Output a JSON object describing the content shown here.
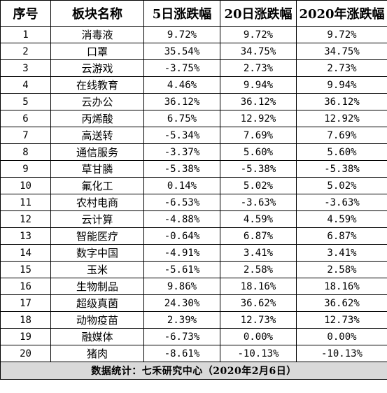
{
  "table": {
    "headers": [
      "序号",
      "板块名称",
      "5日涨跌幅",
      "20日涨跌幅",
      "2020年涨跌幅"
    ],
    "rows": [
      [
        "1",
        "消毒液",
        "9.72%",
        "9.72%",
        "9.72%"
      ],
      [
        "2",
        "口罩",
        "35.54%",
        "34.75%",
        "34.75%"
      ],
      [
        "3",
        "云游戏",
        "-3.75%",
        "2.73%",
        "2.73%"
      ],
      [
        "4",
        "在线教育",
        "4.46%",
        "9.94%",
        "9.94%"
      ],
      [
        "5",
        "云办公",
        "36.12%",
        "36.12%",
        "36.12%"
      ],
      [
        "6",
        "丙烯酸",
        "6.75%",
        "12.92%",
        "12.92%"
      ],
      [
        "7",
        "高送转",
        "-5.34%",
        "7.69%",
        "7.69%"
      ],
      [
        "8",
        "通信服务",
        "-3.37%",
        "5.60%",
        "5.60%"
      ],
      [
        "9",
        "草甘膦",
        "-5.38%",
        "-5.38%",
        "-5.38%"
      ],
      [
        "10",
        "氟化工",
        "0.14%",
        "5.02%",
        "5.02%"
      ],
      [
        "11",
        "农村电商",
        "-6.53%",
        "-3.63%",
        "-3.63%"
      ],
      [
        "12",
        "云计算",
        "-4.88%",
        "4.59%",
        "4.59%"
      ],
      [
        "13",
        "智能医疗",
        "-0.64%",
        "6.87%",
        "6.87%"
      ],
      [
        "14",
        "数字中国",
        "-4.91%",
        "3.41%",
        "3.41%"
      ],
      [
        "15",
        "玉米",
        "-5.61%",
        "2.58%",
        "2.58%"
      ],
      [
        "16",
        "生物制品",
        "9.86%",
        "18.16%",
        "18.16%"
      ],
      [
        "17",
        "超级真菌",
        "24.30%",
        "36.62%",
        "36.62%"
      ],
      [
        "18",
        "动物疫苗",
        "2.39%",
        "12.73%",
        "12.73%"
      ],
      [
        "19",
        "融媒体",
        "-6.73%",
        "0.00%",
        "0.00%"
      ],
      [
        "20",
        "猪肉",
        "-8.61%",
        "-10.13%",
        "-10.13%"
      ]
    ],
    "footer": "数据统计：七禾研究中心（2020年2月6日）"
  }
}
